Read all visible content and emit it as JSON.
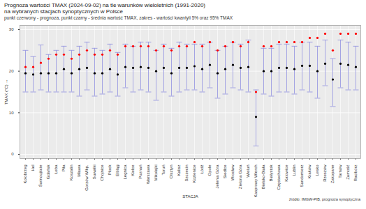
{
  "chart_data": {
    "type": "errorbar",
    "title": [
      "Prognoza wartości TMAX (2024-09-02) na tle warunków wieloletnich (1991-2020)",
      "na wybranych stacjach synoptycznych w Polsce"
    ],
    "subtitle": "punkt czerwony - prognoza, punkt czarny - średnia wartość TMAX, zakres - wartości kwantyli 5% oraz 95% TMAX",
    "caption": "źródło: IMGW-PIB, prognoza synoptyczna",
    "x_label": "STACJA",
    "y_label": "TMAX (°C)",
    "categories": [
      "Kołobrzeg",
      "Hel",
      "Świnoujście",
      "Gdańsk",
      "Łeba",
      "Piła",
      "Koszalin",
      "Mława",
      "Gorzów Wlkp.",
      "Suwałki",
      "Chojnice",
      "Płock",
      "Elbląg",
      "Legnica",
      "Kielce",
      "Poznań",
      "Warszawa",
      "Mikołajki",
      "Toruń",
      "Olsztyn",
      "Kalisz",
      "Szczecin",
      "Kozienice",
      "Łódź",
      "Opole",
      "Jelenia Góra",
      "Siedlce",
      "Wrocław",
      "Zielona Góra",
      "Wieluń",
      "Kasprowy Wierch",
      "Bielsko-Biała",
      "Białystok",
      "Częstochowa",
      "Katowice",
      "Lublin",
      "Sandomierz",
      "Kraków",
      "Lesko",
      "Rzeszów",
      "Zakopane",
      "Tarnów",
      "Zamość",
      "Racibórz"
    ],
    "series": [
      {
        "name": "prognoza",
        "color": "#ff0000",
        "marker": "circle",
        "values": [
          21,
          21,
          22,
          23,
          24,
          24,
          23,
          24,
          25,
          24,
          24,
          25,
          24,
          26,
          26,
          26,
          26,
          25,
          26,
          25,
          26,
          26,
          27,
          26,
          27,
          25,
          26,
          27,
          26,
          27,
          15,
          26,
          26,
          27,
          27,
          27,
          27,
          28,
          28,
          29,
          25,
          29,
          29,
          29
        ]
      },
      {
        "name": "średnia wartość TMAX",
        "color": "#000000",
        "marker": "circle",
        "values": [
          19.5,
          19.2,
          19.5,
          19.5,
          19.5,
          20.5,
          19.5,
          20.5,
          20.8,
          19.5,
          19.5,
          20.5,
          19.2,
          21,
          20.8,
          21,
          20.8,
          20,
          20.8,
          19.5,
          20.8,
          20.8,
          21.2,
          20.5,
          21.5,
          19.5,
          20.5,
          21.5,
          20.8,
          21,
          9,
          20,
          20,
          20.8,
          20.8,
          20.5,
          21.3,
          21.3,
          20,
          21.8,
          18,
          21.8,
          21.5,
          21
        ]
      }
    ],
    "range": {
      "name": "wartości kwantyli 5% oraz 95% TMAX",
      "color": "#9a9ae0",
      "low": [
        15,
        15,
        15.5,
        15,
        15,
        15,
        15,
        14,
        15.5,
        14,
        14.5,
        15,
        14,
        16,
        15,
        15.5,
        15,
        13,
        15,
        14,
        15,
        15.5,
        15.5,
        15,
        16,
        13.5,
        14.5,
        16,
        15.5,
        15,
        2,
        14.5,
        14,
        15,
        15,
        14.5,
        15.5,
        15,
        13.5,
        16.5,
        11.5,
        16,
        15.5,
        15.5
      ],
      "high": [
        25,
        23.5,
        26.3,
        24,
        25,
        26,
        25,
        26,
        27,
        25.5,
        25,
        26.5,
        24.5,
        26.5,
        26,
        27,
        27,
        25,
        26.5,
        25.5,
        27,
        26.5,
        26.5,
        26.5,
        27,
        25,
        26,
        27,
        26.5,
        27.5,
        15.5,
        25.5,
        25.5,
        26.5,
        26.5,
        26,
        27,
        27,
        26,
        27.5,
        23,
        27.5,
        27,
        26
      ]
    },
    "ylim": [
      -1,
      31
    ],
    "yticks": [
      0,
      10,
      20,
      30
    ],
    "grid": true
  }
}
